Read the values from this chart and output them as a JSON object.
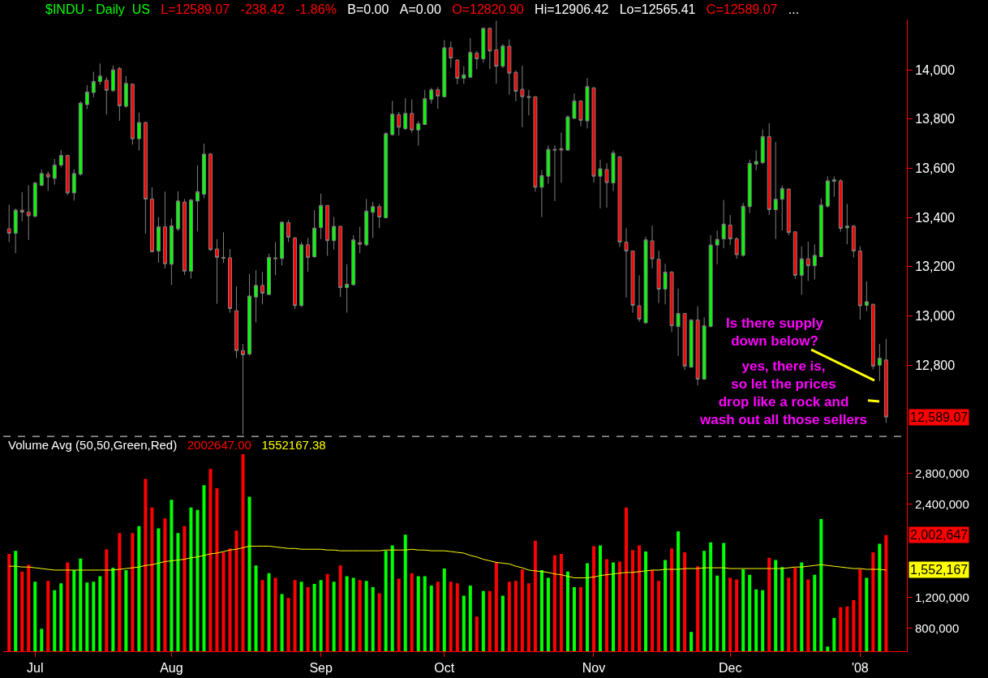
{
  "chart_data": [
    {
      "type": "candlestick",
      "title": "$INDU - Daily  US",
      "annotations": [
        "L=12589.07",
        "-238.42",
        "-1.86%",
        "B=0.00",
        "A=0.00",
        "O=12820.90",
        "Hi=12906.42",
        "Lo=12565.41",
        "C=12589.07",
        "...",
        "Is there supply\ndown below?",
        "yes, there is,\nso let the prices\ndrop like a rock and\nwash out all those sellers",
        "12,589.07"
      ],
      "categories": [
        null,
        null,
        null,
        null,
        null,
        null,
        null,
        null,
        null,
        null,
        null,
        null,
        null,
        null,
        null,
        null,
        null,
        null,
        null,
        null,
        null,
        null,
        null,
        null,
        null,
        null,
        null,
        null,
        null,
        null,
        null,
        null,
        null,
        null,
        null,
        null,
        null,
        null,
        null,
        null,
        null,
        null,
        null,
        null,
        null,
        null,
        null,
        null,
        null,
        null,
        null,
        null,
        null,
        null,
        null,
        null,
        null,
        null,
        null,
        null,
        null,
        null,
        null,
        null,
        null,
        null,
        null,
        null,
        null,
        null,
        null,
        null,
        null,
        null,
        null,
        null,
        null,
        null,
        null,
        null,
        null,
        null,
        null,
        null,
        null,
        null,
        null,
        null,
        null,
        null,
        null,
        null,
        null,
        null,
        null,
        null,
        null,
        null,
        null,
        null,
        null,
        null,
        null,
        null,
        null,
        null,
        null,
        null,
        null,
        null,
        null,
        null,
        null,
        null,
        null,
        null,
        null,
        null,
        null,
        null,
        null,
        null,
        null,
        null,
        null,
        null,
        null,
        null,
        null,
        null,
        null,
        null,
        null,
        null,
        null,
        null
      ],
      "ohlc": [
        [
          13354,
          13452,
          13300,
          13336
        ],
        [
          13336,
          13436,
          13255,
          13430
        ],
        [
          13430,
          13503,
          13385,
          13422
        ],
        [
          13422,
          13531,
          13309,
          13407
        ],
        [
          13405,
          13545,
          13400,
          13540
        ],
        [
          13531,
          13596,
          13527,
          13579
        ],
        [
          13576,
          13587,
          13508,
          13565
        ],
        [
          13559,
          13638,
          13534,
          13613
        ],
        [
          13613,
          13674,
          13604,
          13652
        ],
        [
          13652,
          13655,
          13491,
          13500
        ],
        [
          13500,
          13596,
          13469,
          13579
        ],
        [
          13576,
          13872,
          13570,
          13865
        ],
        [
          13859,
          13938,
          13840,
          13910
        ],
        [
          13908,
          13992,
          13889,
          13953
        ],
        [
          13953,
          14026,
          13939,
          13975
        ],
        [
          13958,
          13970,
          13818,
          13917
        ],
        [
          13916,
          14018,
          13910,
          14000
        ],
        [
          14006,
          14012,
          13793,
          13854
        ],
        [
          13852,
          13975,
          13846,
          13945
        ],
        [
          13942,
          13944,
          13696,
          13720
        ],
        [
          13720,
          13826,
          13672,
          13786
        ],
        [
          13786,
          13790,
          13334,
          13475
        ],
        [
          13475,
          13523,
          13258,
          13261
        ],
        [
          13264,
          13402,
          13216,
          13362
        ],
        [
          13362,
          13505,
          13193,
          13212
        ],
        [
          13210,
          13396,
          13126,
          13366
        ],
        [
          13354,
          13506,
          13345,
          13467
        ],
        [
          13463,
          13475,
          13167,
          13182
        ],
        [
          13182,
          13475,
          13152,
          13471
        ],
        [
          13467,
          13612,
          13343,
          13505
        ],
        [
          13495,
          13700,
          13478,
          13658
        ],
        [
          13658,
          13662,
          13264,
          13269
        ],
        [
          13272,
          13312,
          13049,
          13238
        ],
        [
          13238,
          13340,
          13216,
          13235
        ],
        [
          13236,
          13272,
          13013,
          13030
        ],
        [
          13021,
          13120,
          12828,
          12859
        ],
        [
          12859,
          12886,
          12518,
          12842
        ],
        [
          12845,
          13171,
          12839,
          13081
        ],
        [
          13077,
          13186,
          12974,
          13124
        ],
        [
          13124,
          13179,
          13047,
          13092
        ],
        [
          13087,
          13253,
          13084,
          13238
        ],
        [
          13236,
          13300,
          13165,
          13233
        ],
        [
          13233,
          13385,
          13205,
          13381
        ],
        [
          13379,
          13390,
          13300,
          13320
        ],
        [
          13317,
          13320,
          13028,
          13042
        ],
        [
          13042,
          13300,
          13036,
          13289
        ],
        [
          13289,
          13317,
          13179,
          13238
        ],
        [
          13241,
          13430,
          13235,
          13357
        ],
        [
          13359,
          13497,
          13312,
          13449
        ],
        [
          13449,
          13450,
          13244,
          13306
        ],
        [
          13306,
          13402,
          13269,
          13364
        ],
        [
          13364,
          13366,
          13077,
          13115
        ],
        [
          13115,
          13210,
          13013,
          13129
        ],
        [
          13127,
          13328,
          13123,
          13309
        ],
        [
          13298,
          13362,
          13255,
          13291
        ],
        [
          13289,
          13475,
          13283,
          13426
        ],
        [
          13421,
          13463,
          13317,
          13444
        ],
        [
          13444,
          13455,
          13357,
          13402
        ],
        [
          13399,
          13746,
          13396,
          13741
        ],
        [
          13737,
          13874,
          13733,
          13820
        ],
        [
          13818,
          13829,
          13733,
          13767
        ],
        [
          13761,
          13885,
          13756,
          13823
        ],
        [
          13823,
          13880,
          13745,
          13756
        ],
        [
          13756,
          13792,
          13692,
          13781
        ],
        [
          13778,
          13919,
          13775,
          13883
        ],
        [
          13880,
          13927,
          13863,
          13919
        ],
        [
          13919,
          13930,
          13842,
          13894
        ],
        [
          13891,
          14121,
          13888,
          14090
        ],
        [
          14090,
          14115,
          14009,
          14048
        ],
        [
          14040,
          14043,
          13942,
          13966
        ],
        [
          13966,
          14015,
          13944,
          13980
        ],
        [
          13970,
          14129,
          13967,
          14071
        ],
        [
          14068,
          14077,
          14003,
          14045
        ],
        [
          14045,
          14172,
          14029,
          14169
        ],
        [
          14169,
          14172,
          14003,
          14077
        ],
        [
          14082,
          14200,
          13944,
          14015
        ],
        [
          14015,
          14105,
          14007,
          14097
        ],
        [
          14096,
          14124,
          13899,
          13987
        ],
        [
          13990,
          13998,
          13872,
          13913
        ],
        [
          13921,
          14017,
          13767,
          13891
        ],
        [
          13888,
          13919,
          13815,
          13891
        ],
        [
          13891,
          13891,
          13505,
          13523
        ],
        [
          13523,
          13593,
          13402,
          13570
        ],
        [
          13568,
          13692,
          13537,
          13677
        ],
        [
          13677,
          13694,
          13467,
          13674
        ],
        [
          13680,
          13745,
          13542,
          13674
        ],
        [
          13674,
          13815,
          13671,
          13809
        ],
        [
          13803,
          13904,
          13801,
          13874
        ],
        [
          13874,
          13876,
          13771,
          13795
        ],
        [
          13793,
          13966,
          13762,
          13932
        ],
        [
          13927,
          13930,
          13542,
          13568
        ],
        [
          13568,
          13635,
          13437,
          13598
        ],
        [
          13595,
          13621,
          13440,
          13542
        ],
        [
          13541,
          13673,
          13508,
          13662
        ],
        [
          13646,
          13650,
          13280,
          13300
        ],
        [
          13300,
          13356,
          13075,
          13264
        ],
        [
          13264,
          13264,
          13013,
          13043
        ],
        [
          13041,
          13165,
          12976,
          12987
        ],
        [
          12972,
          13322,
          12968,
          13309
        ],
        [
          13305,
          13367,
          13193,
          13232
        ],
        [
          13230,
          13266,
          13052,
          13109
        ],
        [
          13109,
          13212,
          13047,
          13178
        ],
        [
          13178,
          13182,
          12934,
          12960
        ],
        [
          12957,
          13111,
          12837,
          13010
        ],
        [
          13010,
          13010,
          12781,
          12796
        ],
        [
          12792,
          12987,
          12788,
          12983
        ],
        [
          12983,
          13039,
          12718,
          12743
        ],
        [
          12743,
          12994,
          12740,
          12960
        ],
        [
          12957,
          13328,
          12953,
          13288
        ],
        [
          13288,
          13347,
          13210,
          13311
        ],
        [
          13313,
          13471,
          13275,
          13373
        ],
        [
          13369,
          13410,
          13288,
          13313
        ],
        [
          13313,
          13320,
          13232,
          13249
        ],
        [
          13246,
          13460,
          13241,
          13446
        ],
        [
          13444,
          13635,
          13418,
          13620
        ],
        [
          13617,
          13673,
          13592,
          13628
        ],
        [
          13623,
          13758,
          13617,
          13729
        ],
        [
          13729,
          13783,
          13410,
          13432
        ],
        [
          13432,
          13707,
          13313,
          13474
        ],
        [
          13474,
          13530,
          13347,
          13518
        ],
        [
          13516,
          13516,
          13328,
          13339
        ],
        [
          13342,
          13342,
          13151,
          13165
        ],
        [
          13165,
          13283,
          13086,
          13232
        ],
        [
          13232,
          13302,
          13142,
          13204
        ],
        [
          13204,
          13291,
          13148,
          13246
        ],
        [
          13241,
          13477,
          13238,
          13451
        ],
        [
          13446,
          13567,
          13440,
          13549
        ],
        [
          13547,
          13567,
          13485,
          13553
        ],
        [
          13549,
          13556,
          13342,
          13356
        ],
        [
          13358,
          13455,
          13291,
          13365
        ],
        [
          13365,
          13369,
          13238,
          13264
        ],
        [
          13264,
          13283,
          12985,
          13041
        ],
        [
          13043,
          13140,
          13019,
          13058
        ],
        [
          13047,
          13050,
          12783,
          12796
        ],
        [
          12800,
          12886,
          12735,
          12828
        ],
        [
          12820.9,
          12906.42,
          12565.41,
          12589.07
        ]
      ],
      "ylim": [
        12510,
        14205
      ],
      "yticks": [
        {
          "value": 12800,
          "label": "12,800"
        },
        {
          "value": 13000,
          "label": "13,000"
        },
        {
          "value": 13200,
          "label": "13,200"
        },
        {
          "value": 13400,
          "label": "13,400"
        },
        {
          "value": 13600,
          "label": "13,600"
        },
        {
          "value": 13800,
          "label": "13,800"
        },
        {
          "value": 14000,
          "label": "14,000"
        }
      ],
      "tick_labels": "y"
    },
    {
      "type": "bar",
      "title": "Volume Avg (50,50,Green,Red)",
      "annotations": [
        "2002647.00",
        "1552167.38",
        "2,002,647",
        "1,552,167"
      ],
      "categories": [
        null,
        null,
        null,
        null,
        "Jul",
        null,
        null,
        null,
        null,
        null,
        null,
        null,
        null,
        null,
        null,
        null,
        null,
        null,
        null,
        null,
        null,
        null,
        null,
        null,
        null,
        "Aug",
        null,
        null,
        null,
        null,
        null,
        null,
        null,
        null,
        null,
        null,
        null,
        null,
        null,
        null,
        null,
        null,
        null,
        null,
        null,
        null,
        null,
        null,
        "Sep",
        null,
        null,
        null,
        null,
        null,
        null,
        null,
        null,
        null,
        null,
        null,
        null,
        null,
        null,
        null,
        null,
        null,
        null,
        "Oct",
        null,
        null,
        null,
        null,
        null,
        null,
        null,
        null,
        null,
        null,
        null,
        null,
        null,
        null,
        null,
        null,
        null,
        null,
        null,
        null,
        null,
        null,
        "Nov",
        null,
        null,
        null,
        null,
        null,
        null,
        null,
        null,
        null,
        null,
        null,
        null,
        null,
        null,
        null,
        null,
        null,
        null,
        null,
        null,
        "Dec",
        null,
        null,
        null,
        null,
        null,
        null,
        null,
        null,
        null,
        null,
        null,
        null,
        null,
        null,
        null,
        null,
        null,
        null,
        null,
        "'08",
        null,
        null,
        null,
        null
      ],
      "series": [
        {
          "type": "bar",
          "values": [
            1760000,
            1800000,
            1530000,
            1620000,
            1400000,
            790000,
            1410000,
            1290000,
            1380000,
            1650000,
            1550000,
            1700000,
            1390000,
            1400000,
            1470000,
            1820000,
            1580000,
            2030000,
            1550000,
            2030000,
            2120000,
            2730000,
            2360000,
            2090000,
            2220000,
            2460000,
            2030000,
            2120000,
            2360000,
            2330000,
            2650000,
            2860000,
            2610000,
            1780000,
            1830000,
            2060000,
            3050000,
            2500000,
            1610000,
            1420000,
            1510000,
            1450000,
            1240000,
            1190000,
            1420000,
            1400000,
            1330000,
            1370000,
            1420000,
            1500000,
            1400000,
            1610000,
            1470000,
            1450000,
            1420000,
            1410000,
            1330000,
            1250000,
            1800000,
            1870000,
            1440000,
            2010000,
            1510000,
            1470000,
            1470000,
            1350000,
            1400000,
            1570000,
            1400000,
            1380000,
            1220000,
            1350000,
            950000,
            1280000,
            1280000,
            1650000,
            1220000,
            1400000,
            1410000,
            1560000,
            1380000,
            1930000,
            1550000,
            1450000,
            1740000,
            1760000,
            1530000,
            1330000,
            1330000,
            1640000,
            1860000,
            1870000,
            1690000,
            1650000,
            1660000,
            2360000,
            1810000,
            1870000,
            1790000,
            1550000,
            1410000,
            1680000,
            1830000,
            2050000,
            1780000,
            750000,
            1600000,
            1800000,
            1910000,
            1480000,
            1900000,
            1450000,
            1430000,
            1560000,
            1490000,
            1300000,
            1290000,
            1710000,
            1680000,
            1590000,
            1450000,
            1580000,
            1650000,
            1430000,
            1490000,
            2210000,
            560000,
            930000,
            1070000,
            1080000,
            1160000,
            1560000,
            1450000,
            1780000,
            1890000,
            2002647
          ],
          "colors": [
            "#ff0000",
            "#00ff00",
            "#ff0000",
            "#ff0000",
            "#00ff00",
            "#00ff00",
            "#ff0000",
            "#00ff00",
            "#00ff00",
            "#ff0000",
            "#00ff00",
            "#00ff00",
            "#00ff00",
            "#00ff00",
            "#00ff00",
            "#ff0000",
            "#00ff00",
            "#ff0000",
            "#00ff00",
            "#ff0000",
            "#00ff00",
            "#ff0000",
            "#ff0000",
            "#00ff00",
            "#ff0000",
            "#00ff00",
            "#00ff00",
            "#ff0000",
            "#00ff00",
            "#00ff00",
            "#00ff00",
            "#ff0000",
            "#ff0000",
            "#ff0000",
            "#ff0000",
            "#ff0000",
            "#ff0000",
            "#00ff00",
            "#00ff00",
            "#ff0000",
            "#00ff00",
            "#ff0000",
            "#00ff00",
            "#ff0000",
            "#ff0000",
            "#00ff00",
            "#ff0000",
            "#00ff00",
            "#00ff00",
            "#ff0000",
            "#00ff00",
            "#ff0000",
            "#00ff00",
            "#00ff00",
            "#ff0000",
            "#00ff00",
            "#00ff00",
            "#ff0000",
            "#00ff00",
            "#00ff00",
            "#ff0000",
            "#00ff00",
            "#ff0000",
            "#00ff00",
            "#00ff00",
            "#00ff00",
            "#ff0000",
            "#00ff00",
            "#ff0000",
            "#ff0000",
            "#00ff00",
            "#00ff00",
            "#ff0000",
            "#00ff00",
            "#ff0000",
            "#ff0000",
            "#00ff00",
            "#ff0000",
            "#ff0000",
            "#ff0000",
            "#ff0000",
            "#ff0000",
            "#00ff00",
            "#00ff00",
            "#ff0000",
            "#ff0000",
            "#00ff00",
            "#00ff00",
            "#ff0000",
            "#00ff00",
            "#ff0000",
            "#00ff00",
            "#ff0000",
            "#00ff00",
            "#ff0000",
            "#ff0000",
            "#ff0000",
            "#ff0000",
            "#00ff00",
            "#ff0000",
            "#ff0000",
            "#00ff00",
            "#ff0000",
            "#00ff00",
            "#ff0000",
            "#00ff00",
            "#ff0000",
            "#00ff00",
            "#00ff00",
            "#00ff00",
            "#00ff00",
            "#ff0000",
            "#ff0000",
            "#00ff00",
            "#00ff00",
            "#00ff00",
            "#00ff00",
            "#ff0000",
            "#00ff00",
            "#00ff00",
            "#ff0000",
            "#ff0000",
            "#00ff00",
            "#ff0000",
            "#00ff00",
            "#00ff00",
            "#00ff00",
            "#00ff00",
            "#ff0000",
            "#ff0000",
            "#ff0000",
            "#ff0000",
            "#00ff00",
            "#ff0000",
            "#00ff00",
            "#ff0000"
          ]
        },
        {
          "type": "line",
          "color": "#ffff00",
          "values": [
            1600000,
            1600000,
            1590000,
            1590000,
            1580000,
            1570000,
            1560000,
            1550000,
            1550000,
            1550000,
            1550000,
            1550000,
            1550000,
            1550000,
            1550000,
            1550000,
            1550000,
            1560000,
            1570000,
            1580000,
            1590000,
            1610000,
            1620000,
            1640000,
            1660000,
            1670000,
            1680000,
            1690000,
            1710000,
            1720000,
            1740000,
            1760000,
            1770000,
            1790000,
            1810000,
            1820000,
            1840000,
            1860000,
            1860000,
            1860000,
            1860000,
            1850000,
            1840000,
            1830000,
            1830000,
            1820000,
            1820000,
            1820000,
            1820000,
            1810000,
            1810000,
            1800000,
            1800000,
            1800000,
            1800000,
            1800000,
            1800000,
            1800000,
            1810000,
            1810000,
            1810000,
            1810000,
            1820000,
            1810000,
            1810000,
            1800000,
            1800000,
            1800000,
            1790000,
            1780000,
            1770000,
            1740000,
            1720000,
            1690000,
            1670000,
            1650000,
            1640000,
            1630000,
            1600000,
            1580000,
            1550000,
            1540000,
            1530000,
            1520000,
            1500000,
            1490000,
            1470000,
            1450000,
            1450000,
            1450000,
            1460000,
            1480000,
            1490000,
            1500000,
            1510000,
            1520000,
            1520000,
            1530000,
            1540000,
            1550000,
            1550000,
            1560000,
            1560000,
            1560000,
            1570000,
            1570000,
            1570000,
            1580000,
            1580000,
            1580000,
            1580000,
            1570000,
            1570000,
            1570000,
            1570000,
            1570000,
            1570000,
            1570000,
            1570000,
            1570000,
            1580000,
            1590000,
            1590000,
            1600000,
            1610000,
            1620000,
            1610000,
            1600000,
            1590000,
            1580000,
            1570000,
            1570000,
            1560000,
            1560000,
            1560000,
            1550000
          ]
        }
      ],
      "ylim": [
        500000,
        3280000
      ],
      "yticks": [
        {
          "value": 800000,
          "label": "800,000"
        },
        {
          "value": 1200000,
          "label": "1,200,000"
        },
        {
          "value": 2400000,
          "label": "2,400,000"
        },
        {
          "value": 2800000,
          "label": "2,800,000"
        }
      ]
    }
  ]
}
